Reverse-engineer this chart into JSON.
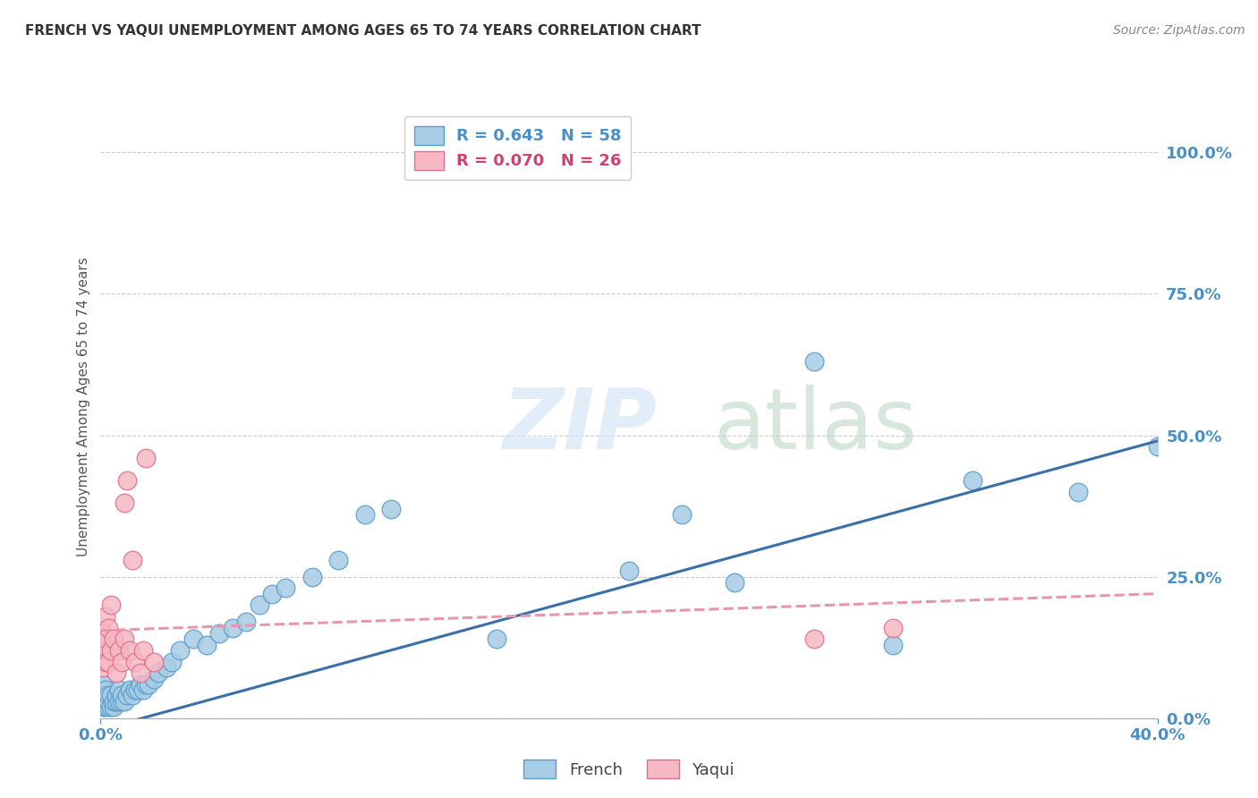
{
  "title": "FRENCH VS YAQUI UNEMPLOYMENT AMONG AGES 65 TO 74 YEARS CORRELATION CHART",
  "source": "Source: ZipAtlas.com",
  "ylabel": "Unemployment Among Ages 65 to 74 years",
  "xlim": [
    0.0,
    0.4
  ],
  "ylim": [
    0.0,
    1.1
  ],
  "xticks": [
    0.0,
    0.4
  ],
  "xticklabels": [
    "0.0%",
    "40.0%"
  ],
  "yticks": [
    0.0,
    0.25,
    0.5,
    0.75,
    1.0
  ],
  "yticklabels": [
    "0.0%",
    "25.0%",
    "50.0%",
    "75.0%",
    "100.0%"
  ],
  "french_color": "#a8cce4",
  "french_edge": "#5b9ec9",
  "yaqui_color": "#f5b8c4",
  "yaqui_edge": "#e07090",
  "french_R": 0.643,
  "french_N": 58,
  "yaqui_R": 0.07,
  "yaqui_N": 26,
  "french_line_color": "#3a6faa",
  "yaqui_line_color": "#e896aa",
  "background_color": "#ffffff",
  "grid_color": "#cccccc",
  "french_scatter_x": [
    0.001,
    0.001,
    0.001,
    0.001,
    0.001,
    0.002,
    0.002,
    0.002,
    0.002,
    0.003,
    0.003,
    0.003,
    0.004,
    0.004,
    0.005,
    0.005,
    0.006,
    0.006,
    0.007,
    0.007,
    0.008,
    0.008,
    0.009,
    0.01,
    0.011,
    0.012,
    0.013,
    0.014,
    0.015,
    0.016,
    0.017,
    0.018,
    0.02,
    0.022,
    0.025,
    0.027,
    0.03,
    0.035,
    0.04,
    0.045,
    0.05,
    0.055,
    0.06,
    0.065,
    0.07,
    0.08,
    0.09,
    0.1,
    0.11,
    0.15,
    0.2,
    0.22,
    0.24,
    0.27,
    0.3,
    0.33,
    0.37,
    0.4
  ],
  "french_scatter_y": [
    0.02,
    0.03,
    0.04,
    0.05,
    0.06,
    0.02,
    0.03,
    0.04,
    0.05,
    0.02,
    0.03,
    0.04,
    0.02,
    0.04,
    0.02,
    0.03,
    0.03,
    0.04,
    0.03,
    0.05,
    0.03,
    0.04,
    0.03,
    0.04,
    0.05,
    0.04,
    0.05,
    0.05,
    0.06,
    0.05,
    0.06,
    0.06,
    0.07,
    0.08,
    0.09,
    0.1,
    0.12,
    0.14,
    0.13,
    0.15,
    0.16,
    0.17,
    0.2,
    0.22,
    0.23,
    0.25,
    0.28,
    0.36,
    0.37,
    0.14,
    0.26,
    0.36,
    0.24,
    0.63,
    0.13,
    0.42,
    0.4,
    0.48
  ],
  "yaqui_scatter_x": [
    0.001,
    0.001,
    0.001,
    0.002,
    0.002,
    0.002,
    0.003,
    0.003,
    0.004,
    0.004,
    0.005,
    0.006,
    0.007,
    0.008,
    0.009,
    0.009,
    0.01,
    0.011,
    0.012,
    0.013,
    0.015,
    0.016,
    0.017,
    0.02,
    0.27,
    0.3
  ],
  "yaqui_scatter_y": [
    0.09,
    0.12,
    0.15,
    0.1,
    0.14,
    0.18,
    0.1,
    0.16,
    0.12,
    0.2,
    0.14,
    0.08,
    0.12,
    0.1,
    0.14,
    0.38,
    0.42,
    0.12,
    0.28,
    0.1,
    0.08,
    0.12,
    0.46,
    0.1,
    0.14,
    0.16
  ],
  "french_trend_x": [
    0.0,
    0.4
  ],
  "french_trend_y": [
    -0.02,
    0.49
  ],
  "yaqui_trend_x": [
    0.0,
    0.4
  ],
  "yaqui_trend_y": [
    0.155,
    0.22
  ]
}
